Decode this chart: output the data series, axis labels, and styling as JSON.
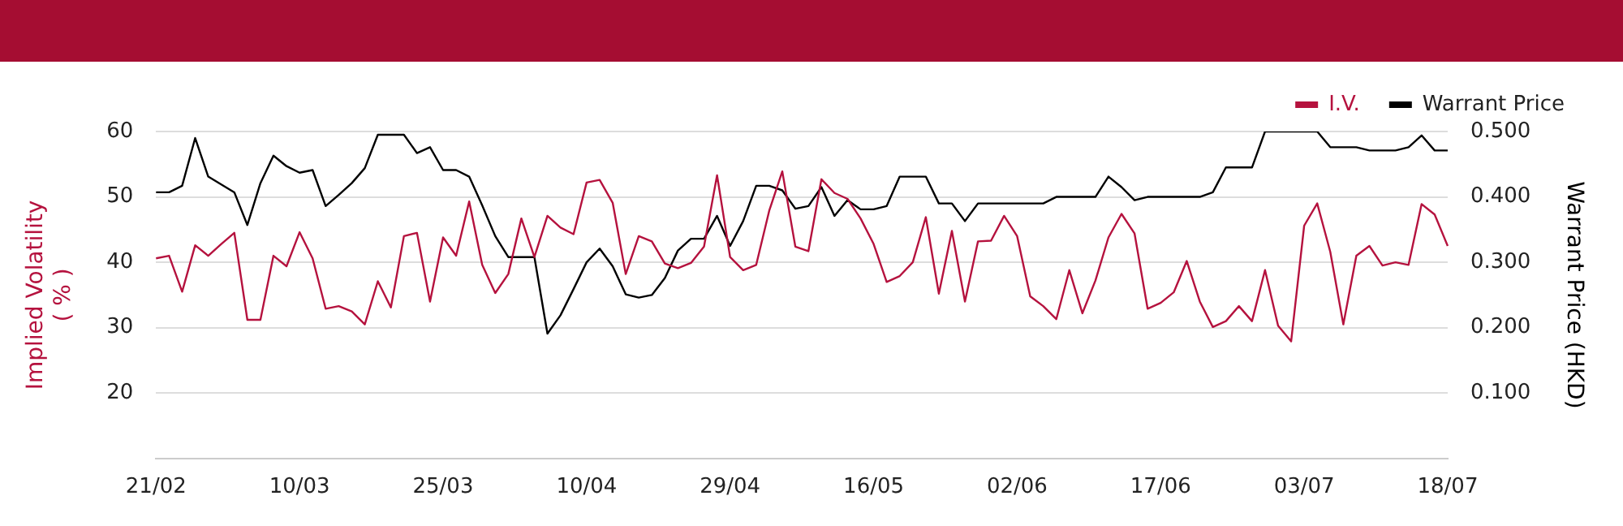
{
  "chart_data": {
    "type": "line",
    "ylabel": "Implied Volatility\n( % )",
    "y2label": "Warrant Price (HKD)",
    "categories": [
      "21/02",
      null,
      null,
      null,
      null,
      null,
      null,
      null,
      null,
      null,
      null,
      "10/03",
      null,
      null,
      null,
      null,
      null,
      null,
      null,
      null,
      null,
      null,
      "25/03",
      null,
      null,
      null,
      null,
      null,
      null,
      null,
      null,
      null,
      null,
      "10/04",
      null,
      null,
      null,
      null,
      null,
      null,
      null,
      null,
      null,
      null,
      "29/04",
      null,
      null,
      null,
      null,
      null,
      null,
      null,
      null,
      null,
      null,
      "16/05",
      null,
      null,
      null,
      null,
      null,
      null,
      null,
      null,
      null,
      null,
      "02/06",
      null,
      null,
      null,
      null,
      null,
      null,
      null,
      null,
      null,
      null,
      "17/06",
      null,
      null,
      null,
      null,
      null,
      null,
      null,
      null,
      null,
      null,
      "03/07",
      null,
      null,
      null,
      null,
      null,
      null,
      null,
      null,
      null,
      null,
      "18/07"
    ],
    "series": [
      {
        "name": "I.V.",
        "color": "#b5123e",
        "values": [
          40.6,
          41.0,
          35.5,
          42.6,
          41.0,
          42.8,
          44.5,
          31.2,
          31.2,
          41.0,
          39.4,
          44.6,
          40.6,
          32.9,
          33.3,
          32.5,
          30.5,
          37.1,
          33.1,
          44.0,
          44.5,
          34.0,
          43.8,
          41.0,
          49.3,
          39.6,
          35.3,
          38.2,
          46.7,
          40.8,
          47.1,
          45.3,
          44.3,
          52.2,
          52.6,
          49.1,
          38.2,
          44.0,
          43.2,
          39.8,
          39.1,
          39.9,
          42.4,
          53.3,
          40.8,
          38.8,
          39.6,
          47.9,
          53.9,
          42.4,
          41.7,
          52.7,
          50.6,
          49.7,
          46.7,
          42.8,
          37.0,
          37.9,
          40.0,
          46.9,
          35.2,
          44.8,
          34.0,
          43.2,
          43.3,
          47.1,
          44.0,
          34.8,
          33.3,
          31.3,
          38.8,
          32.2,
          37.2,
          43.8,
          47.4,
          44.4,
          32.9,
          33.8,
          35.4,
          40.2,
          34.0,
          30.1,
          31.0,
          33.3,
          31.0,
          38.8,
          30.3,
          27.9,
          45.6,
          49.0,
          41.6,
          30.5,
          41.0,
          42.5,
          39.5,
          40.0,
          39.6,
          48.9,
          47.3,
          42.5
        ]
      },
      {
        "name": "Warrant Price",
        "color": "#000000",
        "axis": "y2",
        "values": [
          0.407,
          0.407,
          0.417,
          0.49,
          0.431,
          0.419,
          0.407,
          0.357,
          0.421,
          0.463,
          0.447,
          0.437,
          0.441,
          0.386,
          0.403,
          0.421,
          0.444,
          0.495,
          0.495,
          0.495,
          0.467,
          0.476,
          0.441,
          0.441,
          0.431,
          0.387,
          0.34,
          0.308,
          0.308,
          0.308,
          0.191,
          0.219,
          0.259,
          0.3,
          0.321,
          0.294,
          0.251,
          0.246,
          0.25,
          0.276,
          0.318,
          0.336,
          0.336,
          0.371,
          0.325,
          0.363,
          0.417,
          0.417,
          0.41,
          0.382,
          0.386,
          0.415,
          0.371,
          0.395,
          0.381,
          0.381,
          0.386,
          0.431,
          0.431,
          0.431,
          0.39,
          0.39,
          0.363,
          0.39,
          0.39,
          0.39,
          0.39,
          0.39,
          0.39,
          0.4,
          0.4,
          0.4,
          0.4,
          0.431,
          0.415,
          0.395,
          0.4,
          0.4,
          0.4,
          0.4,
          0.4,
          0.407,
          0.445,
          0.445,
          0.445,
          0.5,
          0.5,
          0.5,
          0.5,
          0.5,
          0.476,
          0.476,
          0.476,
          0.471,
          0.471,
          0.471,
          0.476,
          0.494,
          0.471,
          0.471
        ]
      }
    ],
    "ylim": [
      10,
      60
    ],
    "yticks": [
      20,
      30,
      40,
      50,
      60
    ],
    "y2lim": [
      0,
      0.5
    ],
    "y2ticks": [
      {
        "value": 0.1,
        "label": "0.100"
      },
      {
        "value": 0.2,
        "label": "0.200"
      },
      {
        "value": 0.3,
        "label": "0.300"
      },
      {
        "value": 0.4,
        "label": "0.400"
      },
      {
        "value": 0.5,
        "label": "0.500"
      }
    ],
    "grid": "y",
    "legend": "top right",
    "marker": "none",
    "line_style": "solid"
  }
}
